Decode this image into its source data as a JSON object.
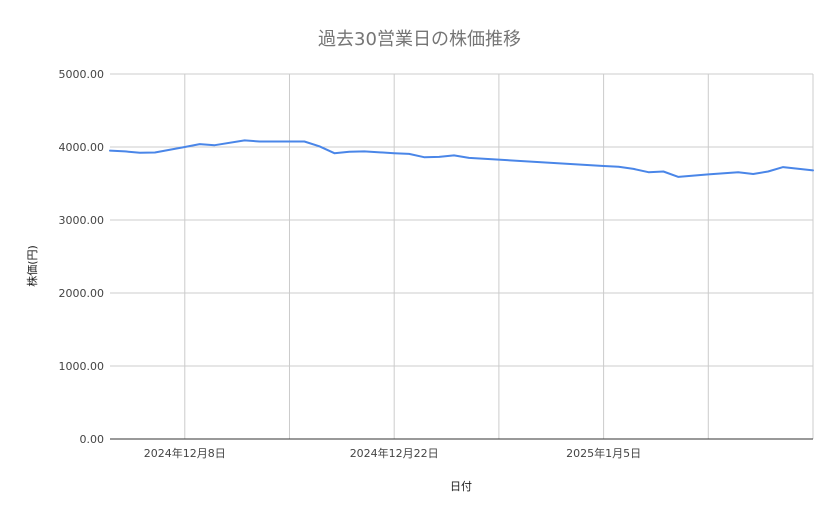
{
  "chart_data": {
    "type": "line",
    "title": "過去30営業日の株価推移",
    "xlabel": "日付",
    "ylabel": "株価(円)",
    "ylim": [
      0,
      5000
    ],
    "y_ticks": [
      "0.00",
      "1000.00",
      "2000.00",
      "3000.00",
      "4000.00",
      "5000.00"
    ],
    "x_ticks": [
      {
        "date": "2024-12-08",
        "label": "2024年12月8日"
      },
      {
        "date": "2024-12-22",
        "label": "2024年12月22日"
      },
      {
        "date": "2025-01-05",
        "label": "2025年1月5日"
      }
    ],
    "x_range": [
      "2024-12-03",
      "2025-01-19"
    ],
    "grid": true,
    "series": [
      {
        "name": "",
        "color": "#4a86e8",
        "points": [
          {
            "x": "2024-12-03",
            "y": 3950
          },
          {
            "x": "2024-12-04",
            "y": 3940
          },
          {
            "x": "2024-12-05",
            "y": 3920
          },
          {
            "x": "2024-12-06",
            "y": 3925
          },
          {
            "x": "2024-12-08",
            "y": 4000
          },
          {
            "x": "2024-12-09",
            "y": 4040
          },
          {
            "x": "2024-12-10",
            "y": 4025
          },
          {
            "x": "2024-12-12",
            "y": 4090
          },
          {
            "x": "2024-12-13",
            "y": 4075
          },
          {
            "x": "2024-12-15",
            "y": 4075
          },
          {
            "x": "2024-12-16",
            "y": 4075
          },
          {
            "x": "2024-12-17",
            "y": 4010
          },
          {
            "x": "2024-12-18",
            "y": 3915
          },
          {
            "x": "2024-12-19",
            "y": 3935
          },
          {
            "x": "2024-12-20",
            "y": 3940
          },
          {
            "x": "2024-12-22",
            "y": 3915
          },
          {
            "x": "2024-12-23",
            "y": 3905
          },
          {
            "x": "2024-12-24",
            "y": 3860
          },
          {
            "x": "2024-12-25",
            "y": 3865
          },
          {
            "x": "2024-12-26",
            "y": 3885
          },
          {
            "x": "2024-12-27",
            "y": 3850
          },
          {
            "x": "2025-01-05",
            "y": 3740
          },
          {
            "x": "2025-01-06",
            "y": 3730
          },
          {
            "x": "2025-01-07",
            "y": 3700
          },
          {
            "x": "2025-01-08",
            "y": 3655
          },
          {
            "x": "2025-01-09",
            "y": 3665
          },
          {
            "x": "2025-01-10",
            "y": 3590
          },
          {
            "x": "2025-01-12",
            "y": 3625
          },
          {
            "x": "2025-01-14",
            "y": 3655
          },
          {
            "x": "2025-01-15",
            "y": 3630
          },
          {
            "x": "2025-01-16",
            "y": 3665
          },
          {
            "x": "2025-01-17",
            "y": 3725
          },
          {
            "x": "2025-01-19",
            "y": 3680
          }
        ]
      }
    ]
  }
}
